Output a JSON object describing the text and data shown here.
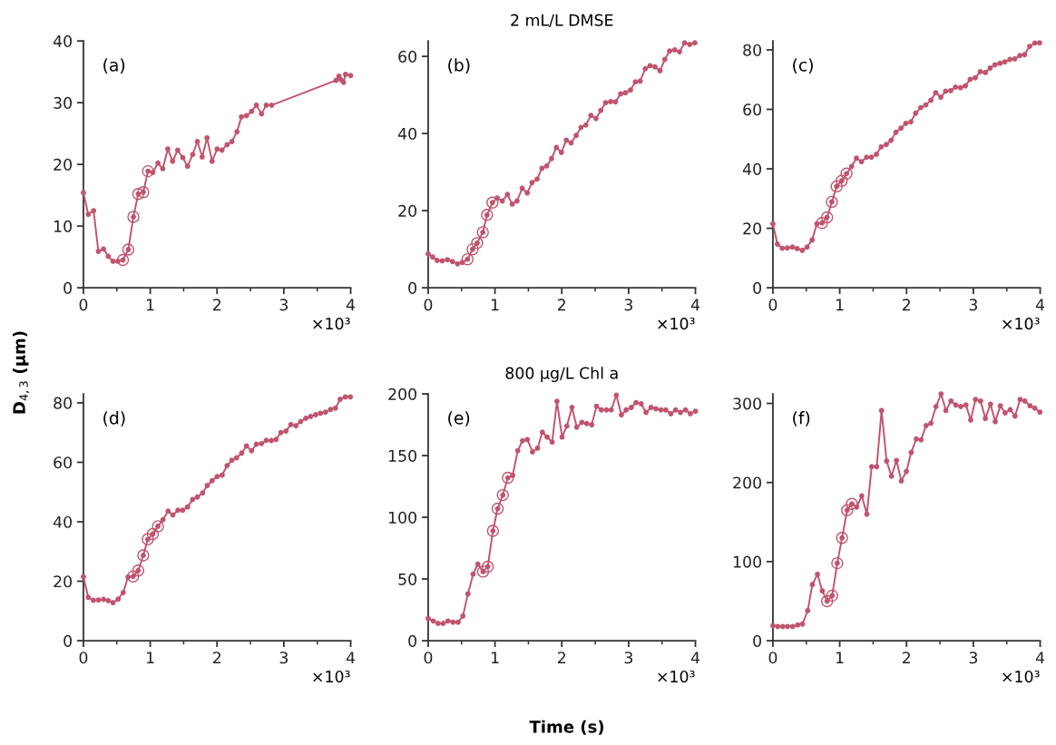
{
  "chart_data": [
    {
      "type": "line",
      "ylabel": "D$_{4,3}$ (μm)",
      "xlim": [
        0,
        4
      ],
      "xticks": [
        0,
        {
          "value": 0.5,
          "label": null
        },
        1,
        {
          "value": 1.5,
          "label": null
        },
        2,
        {
          "value": 2.5,
          "label": null
        },
        3,
        {
          "value": 3.5,
          "label": null
        },
        4
      ],
      "ylim": [
        0,
        40
      ],
      "yticks": [
        0,
        10,
        20,
        30,
        40
      ],
      "annotations": [
        "(a)",
        "×10³"
      ],
      "series": [
        {
          "type": "line",
          "marker": "circle",
          "color": "#c1546e",
          "x": [
            0,
            0.072,
            0.152,
            0.224,
            0.3,
            0.372,
            0.443,
            0.515,
            0.591,
            0.672,
            0.748,
            0.82,
            0.896,
            0.967,
            1.039,
            1.115,
            1.187,
            1.263,
            1.335,
            1.411,
            1.487,
            1.559,
            1.635,
            1.706,
            1.778,
            1.85,
            1.926,
            2.002,
            2.074,
            2.15,
            2.222,
            2.298,
            2.365,
            2.441,
            2.517,
            2.589,
            2.665,
            2.737,
            2.817,
            3.78,
            3.825,
            3.857,
            3.893,
            3.924,
            4
          ],
          "values": [
            15.4,
            11.9,
            12.5,
            5.9,
            6.3,
            5.1,
            4.3,
            4.3,
            4.5,
            6.2,
            11.5,
            15.2,
            15.5,
            18.9,
            18.7,
            20.2,
            19.3,
            22.5,
            20.5,
            22.3,
            21.1,
            19.7,
            21.6,
            23.7,
            21.2,
            24.3,
            20.5,
            22.5,
            22.3,
            23.2,
            23.7,
            25.3,
            27.7,
            27.9,
            28.6,
            29.6,
            28.2,
            29.6,
            29.6,
            33.6,
            34.3,
            33.7,
            33.3,
            34.6,
            34.4
          ]
        },
        {
          "type": "scatter",
          "marker": "circle",
          "color": "#c1546e",
          "x": [
            0.591,
            0.672,
            0.748,
            0.82,
            0.896,
            0.967
          ],
          "values": [
            4.5,
            6.2,
            11.5,
            15.2,
            15.5,
            18.9
          ]
        }
      ]
    },
    {
      "type": "line",
      "title": "2 mL/L DMSE",
      "xlim": [
        0,
        4
      ],
      "xticks": [
        0,
        {
          "value": 0.5,
          "label": null
        },
        1,
        {
          "value": 1.5,
          "label": null
        },
        2,
        {
          "value": 2.5,
          "label": null
        },
        3,
        {
          "value": 3.5,
          "label": null
        },
        4
      ],
      "ylim": [
        0,
        64
      ],
      "yticks": [
        0,
        20,
        40,
        60
      ],
      "annotations": [
        "(b)",
        "×10³"
      ],
      "series": [
        {
          "type": "line",
          "marker": "circle",
          "color": "#c1546e",
          "x": [
            0,
            0.067,
            0.135,
            0.211,
            0.288,
            0.364,
            0.441,
            0.512,
            0.589,
            0.665,
            0.733,
            0.818,
            0.881,
            0.962,
            1.034,
            1.11,
            1.186,
            1.258,
            1.33,
            1.407,
            1.483,
            1.555,
            1.632,
            1.703,
            1.775,
            1.847,
            1.919,
            1.995,
            2.067,
            2.139,
            2.216,
            2.288,
            2.36,
            2.436,
            2.512,
            2.584,
            2.656,
            2.732,
            2.804,
            2.881,
            2.953,
            3.029,
            3.101,
            3.173,
            3.249,
            3.321,
            3.393,
            3.47,
            3.542,
            3.614,
            3.69,
            3.762,
            3.838,
            3.915,
            3.991
          ],
          "values": [
            8.8,
            8.0,
            7.1,
            7.0,
            7.3,
            6.8,
            6.2,
            6.6,
            7.4,
            10.0,
            11.6,
            14.4,
            18.9,
            22.1,
            23.3,
            22.5,
            24.2,
            21.7,
            22.5,
            25.8,
            24.6,
            27.3,
            28.2,
            31.0,
            31.6,
            33.5,
            36.4,
            35.1,
            38.3,
            37.6,
            39.5,
            41.6,
            42.2,
            44.7,
            43.9,
            46.0,
            48.0,
            48.3,
            48.2,
            50.3,
            50.6,
            51.3,
            53.4,
            53.6,
            56.8,
            57.6,
            57.3,
            56.3,
            59.2,
            61.4,
            61.7,
            61.2,
            63.5,
            63.1,
            63.5
          ]
        },
        {
          "type": "scatter",
          "marker": "circle",
          "color": "#c1546e",
          "x": [
            0.589,
            0.665,
            0.733,
            0.818,
            0.881,
            0.962
          ],
          "values": [
            7.4,
            10.0,
            11.6,
            14.4,
            18.9,
            22.1
          ]
        }
      ]
    },
    {
      "type": "line",
      "xlim": [
        0,
        4
      ],
      "xticks": [
        0,
        {
          "value": 0.5,
          "label": null
        },
        1,
        {
          "value": 1.5,
          "label": null
        },
        2,
        {
          "value": 2.5,
          "label": null
        },
        3,
        {
          "value": 3.5,
          "label": null
        },
        4
      ],
      "ylim": [
        0,
        83
      ],
      "yticks": [
        0,
        20,
        40,
        60,
        80
      ],
      "annotations": [
        "(c)",
        "×10³"
      ],
      "series": [
        {
          "type": "line",
          "marker": "circle",
          "color": "#c1546e",
          "x": [
            0,
            0.067,
            0.139,
            0.215,
            0.291,
            0.363,
            0.439,
            0.511,
            0.587,
            0.658,
            0.735,
            0.811,
            0.882,
            0.954,
            1.03,
            1.102,
            1.178,
            1.25,
            1.326,
            1.402,
            1.474,
            1.55,
            1.621,
            1.697,
            1.769,
            1.841,
            1.917,
            1.989,
            2.065,
            2.136,
            2.213,
            2.289,
            2.365,
            2.437,
            2.513,
            2.585,
            2.661,
            2.732,
            2.808,
            2.88,
            2.952,
            3.028,
            3.104,
            3.18,
            3.252,
            3.323,
            3.399,
            3.471,
            3.547,
            3.619,
            3.695,
            3.767,
            3.843,
            3.919,
            3.991
          ],
          "values": [
            21.5,
            14.7,
            13.3,
            13.4,
            13.7,
            13.2,
            12.6,
            13.7,
            16.1,
            21.5,
            21.8,
            23.7,
            28.9,
            34.1,
            36.0,
            38.4,
            40.8,
            43.6,
            42.4,
            43.9,
            43.9,
            44.9,
            47.4,
            48.2,
            49.6,
            52.3,
            53.7,
            55.3,
            55.8,
            58.7,
            60.6,
            61.5,
            63.1,
            65.6,
            64.1,
            66.1,
            66.3,
            67.5,
            67.3,
            67.9,
            70.1,
            70.6,
            72.7,
            72.4,
            73.9,
            75.0,
            75.5,
            76.0,
            76.8,
            77.0,
            78.1,
            78.4,
            81.2,
            82.3,
            82.4
          ]
        },
        {
          "type": "scatter",
          "marker": "circle",
          "color": "#c1546e",
          "x": [
            0.735,
            0.811,
            0.882,
            0.954,
            1.03,
            1.102
          ],
          "values": [
            21.8,
            23.7,
            28.9,
            34.1,
            36.0,
            38.4
          ]
        }
      ]
    },
    {
      "type": "line",
      "xlim": [
        0,
        4
      ],
      "xticks": [
        0,
        {
          "value": 0.5,
          "label": null
        },
        1,
        {
          "value": 1.5,
          "label": null
        },
        2,
        {
          "value": 2.5,
          "label": null
        },
        3,
        {
          "value": 3.5,
          "label": null
        },
        4
      ],
      "ylim": [
        0,
        83
      ],
      "yticks": [
        0,
        20,
        40,
        60,
        80
      ],
      "annotations": [
        "(d)",
        "×10³"
      ],
      "series": [
        {
          "type": "line",
          "marker": "circle",
          "color": "#c1546e",
          "x": [
            0,
            0.072,
            0.148,
            0.224,
            0.3,
            0.372,
            0.443,
            0.52,
            0.596,
            0.667,
            0.744,
            0.82,
            0.896,
            0.963,
            1.039,
            1.115,
            1.191,
            1.267,
            1.339,
            1.415,
            1.487,
            1.559,
            1.635,
            1.706,
            1.783,
            1.854,
            1.926,
            2.002,
            2.078,
            2.15,
            2.222,
            2.293,
            2.369,
            2.441,
            2.517,
            2.589,
            2.665,
            2.737,
            2.813,
            2.884,
            2.956,
            3.032,
            3.104,
            3.18,
            3.252,
            3.328,
            3.4,
            3.476,
            3.548,
            3.624,
            3.7,
            3.772,
            3.843,
            3.92,
            3.995
          ],
          "values": [
            21.5,
            14.6,
            13.6,
            13.7,
            13.9,
            13.5,
            12.8,
            14.0,
            16.2,
            21.4,
            21.6,
            23.6,
            28.7,
            34.1,
            35.9,
            38.5,
            40.7,
            43.6,
            42.3,
            43.9,
            43.9,
            45.0,
            47.5,
            48.3,
            49.7,
            52.2,
            53.8,
            55.2,
            55.7,
            58.9,
            60.7,
            61.5,
            63.1,
            65.5,
            63.9,
            66.1,
            66.3,
            67.4,
            67.3,
            67.7,
            70.0,
            70.5,
            72.7,
            72.3,
            73.7,
            74.8,
            75.4,
            76.0,
            76.5,
            76.9,
            77.8,
            78.2,
            81.2,
            82.0,
            82.0
          ]
        },
        {
          "type": "scatter",
          "marker": "circle",
          "color": "#c1546e",
          "x": [
            0.744,
            0.82,
            0.896,
            0.963,
            1.039,
            1.115
          ],
          "values": [
            21.6,
            23.6,
            28.7,
            34.1,
            35.9,
            38.5
          ]
        }
      ]
    },
    {
      "type": "line",
      "title": "800 μg/L Chl a",
      "xlabel": "Time (s)",
      "xlim": [
        0,
        4
      ],
      "xticks": [
        0,
        {
          "value": 0.5,
          "label": null
        },
        1,
        {
          "value": 1.5,
          "label": null
        },
        2,
        {
          "value": 2.5,
          "label": null
        },
        3,
        {
          "value": 3.5,
          "label": null
        },
        4
      ],
      "ylim": [
        0,
        200
      ],
      "yticks": [
        0,
        50,
        100,
        150,
        200
      ],
      "annotations": [
        "(e)",
        "×10³"
      ],
      "series": [
        {
          "type": "line",
          "marker": "circle",
          "color": "#c1546e",
          "x": [
            0,
            0.076,
            0.148,
            0.224,
            0.296,
            0.372,
            0.448,
            0.52,
            0.596,
            0.673,
            0.744,
            0.821,
            0.892,
            0.969,
            1.04,
            1.117,
            1.193,
            1.265,
            1.341,
            1.412,
            1.484,
            1.561,
            1.637,
            1.709,
            1.78,
            1.856,
            1.928,
            2.004,
            2.076,
            2.152,
            2.224,
            2.3,
            2.372,
            2.448,
            2.52,
            2.592,
            2.668,
            2.74,
            2.816,
            2.892,
            2.964,
            3.04,
            3.112,
            3.188,
            3.26,
            3.336,
            3.408,
            3.484,
            3.556,
            3.632,
            3.704,
            3.776,
            3.852,
            3.924,
            4
          ],
          "values": [
            18,
            16,
            14,
            14,
            16,
            15,
            15,
            20,
            38,
            54,
            62,
            56,
            60,
            89,
            107,
            118,
            132,
            134,
            154,
            162,
            163,
            153,
            156,
            169,
            165,
            161,
            194,
            165,
            174,
            189,
            173,
            177,
            176,
            175,
            190,
            187,
            187,
            187,
            199,
            183,
            187,
            189,
            193,
            192,
            185,
            189,
            188,
            187,
            187,
            184,
            187,
            185,
            187,
            184,
            186
          ]
        },
        {
          "type": "scatter",
          "marker": "circle",
          "color": "#c1546e",
          "x": [
            0.821,
            0.892,
            0.969,
            1.04,
            1.117,
            1.193
          ],
          "values": [
            56,
            60,
            89,
            107,
            118,
            132
          ]
        }
      ]
    },
    {
      "type": "line",
      "xlim": [
        0,
        4
      ],
      "xticks": [
        0,
        {
          "value": 0.5,
          "label": null
        },
        1,
        {
          "value": 1.5,
          "label": null
        },
        2,
        {
          "value": 2.5,
          "label": null
        },
        3,
        {
          "value": 3.5,
          "label": null
        },
        4
      ],
      "ylim": [
        0,
        312
      ],
      "yticks": [
        0,
        100,
        200,
        300
      ],
      "annotations": [
        "(f)",
        "×10³"
      ],
      "series": [
        {
          "type": "line",
          "marker": "circle",
          "color": "#c1546e",
          "x": [
            0,
            0.072,
            0.148,
            0.219,
            0.296,
            0.372,
            0.443,
            0.52,
            0.591,
            0.667,
            0.739,
            0.811,
            0.887,
            0.963,
            1.035,
            1.111,
            1.182,
            1.254,
            1.33,
            1.406,
            1.478,
            1.554,
            1.626,
            1.702,
            1.774,
            1.85,
            1.922,
            1.998,
            2.07,
            2.146,
            2.217,
            2.293,
            2.365,
            2.441,
            2.517,
            2.589,
            2.665,
            2.737,
            2.813,
            2.889,
            2.96,
            3.032,
            3.108,
            3.18,
            3.256,
            3.328,
            3.404,
            3.476,
            3.552,
            3.624,
            3.7,
            3.771,
            3.848,
            3.919,
            3.996
          ],
          "values": [
            19,
            18,
            18,
            18,
            18,
            20,
            21,
            38,
            71,
            84,
            63,
            50,
            57,
            98,
            130,
            165,
            173,
            169,
            183,
            160,
            220,
            220,
            291,
            227,
            208,
            228,
            202,
            214,
            238,
            255,
            254,
            272,
            275,
            296,
            312,
            291,
            303,
            298,
            296,
            298,
            279,
            305,
            303,
            281,
            299,
            277,
            297,
            288,
            292,
            284,
            305,
            303,
            297,
            294,
            289
          ]
        },
        {
          "type": "scatter",
          "marker": "circle",
          "color": "#c1546e",
          "x": [
            0.811,
            0.887,
            0.963,
            1.035,
            1.111,
            1.182
          ],
          "values": [
            50,
            57,
            98,
            130,
            165,
            173
          ]
        }
      ]
    }
  ]
}
